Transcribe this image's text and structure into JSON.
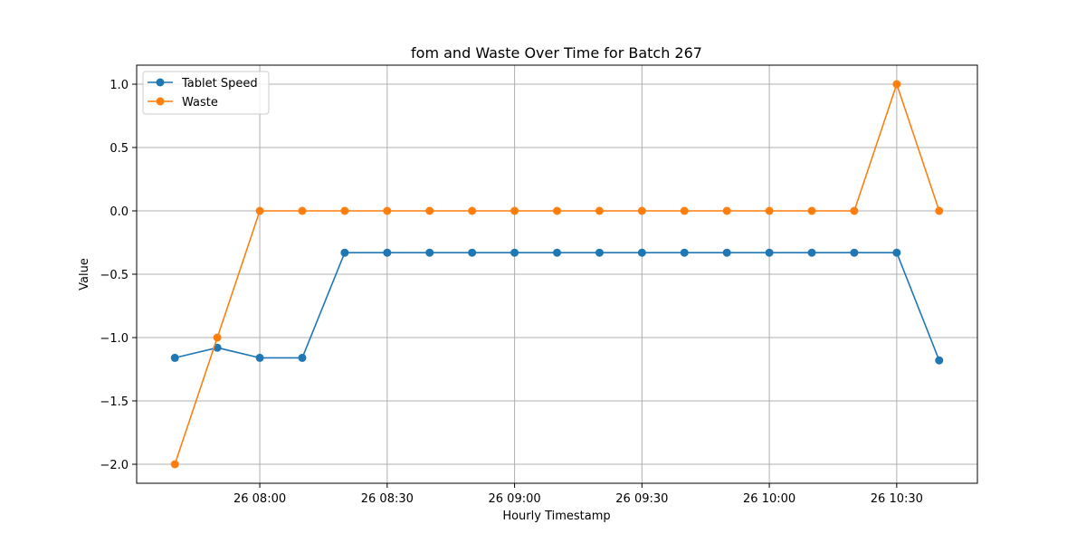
{
  "chart_data": {
    "type": "line",
    "title": "fom and Waste Over Time for Batch 267",
    "xlabel": "Hourly Timestamp",
    "ylabel": "Value",
    "x": [
      "07:40",
      "07:50",
      "08:00",
      "08:10",
      "08:20",
      "08:30",
      "08:40",
      "08:50",
      "09:00",
      "09:10",
      "09:20",
      "09:30",
      "09:40",
      "09:50",
      "10:00",
      "10:10",
      "10:20",
      "10:30",
      "10:40"
    ],
    "x_range": [
      "07:31",
      "10:49"
    ],
    "xticks": [
      {
        "value": "08:00",
        "label": "26 08:00"
      },
      {
        "value": "08:30",
        "label": "26 08:30"
      },
      {
        "value": "09:00",
        "label": "26 09:00"
      },
      {
        "value": "09:30",
        "label": "26 09:30"
      },
      {
        "value": "10:00",
        "label": "26 10:00"
      },
      {
        "value": "10:30",
        "label": "26 10:30"
      }
    ],
    "ylim": [
      -2.15,
      1.15
    ],
    "yticks": [
      -2.0,
      -1.5,
      -1.0,
      -0.5,
      0.0,
      0.5,
      1.0
    ],
    "ytick_labels": [
      "−2.0",
      "−1.5",
      "−1.0",
      "−0.5",
      "0.0",
      "0.5",
      "1.0"
    ],
    "grid": true,
    "legend_position": "top-left",
    "series": [
      {
        "name": "Tablet Speed",
        "color": "#1f77b4",
        "values": [
          -1.16,
          -1.08,
          -1.16,
          -1.16,
          -0.33,
          -0.33,
          -0.33,
          -0.33,
          -0.33,
          -0.33,
          -0.33,
          -0.33,
          -0.33,
          -0.33,
          -0.33,
          -0.33,
          -0.33,
          -0.33,
          -1.18
        ]
      },
      {
        "name": "Waste",
        "color": "#ff7f0e",
        "values": [
          -2.0,
          -1.0,
          0.0,
          0.0,
          0.0,
          0.0,
          0.0,
          0.0,
          0.0,
          0.0,
          0.0,
          0.0,
          0.0,
          0.0,
          0.0,
          0.0,
          0.0,
          1.0,
          0.0
        ]
      }
    ]
  }
}
